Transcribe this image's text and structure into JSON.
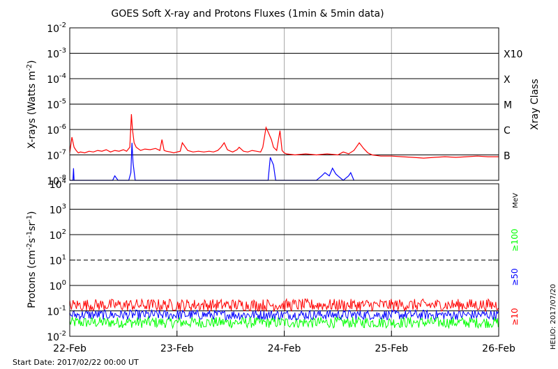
{
  "chart_data": [
    {
      "type": "line",
      "title": "GOES Soft X-ray and Protons Fluxes   (1min & 5min data)",
      "ylabel_parts": {
        "main": "X-rays (Watts m",
        "exp": "-2",
        "close": ")"
      },
      "yscale": "log",
      "ylim": [
        1e-08,
        0.01
      ],
      "yticks": [
        {
          "value": 1e-08,
          "base": "10",
          "exp": "-8"
        },
        {
          "value": 1e-07,
          "base": "10",
          "exp": "-7"
        },
        {
          "value": 1e-06,
          "base": "10",
          "exp": "-6"
        },
        {
          "value": 1e-05,
          "base": "10",
          "exp": "-5"
        },
        {
          "value": 0.0001,
          "base": "10",
          "exp": "-4"
        },
        {
          "value": 0.001,
          "base": "10",
          "exp": "-3"
        },
        {
          "value": 0.01,
          "base": "10",
          "exp": "-2"
        }
      ],
      "right_axis_label": "Xray Class",
      "right_ticks": [
        {
          "value": 1e-07,
          "label": "B"
        },
        {
          "value": 1e-06,
          "label": "C"
        },
        {
          "value": 1e-05,
          "label": "M"
        },
        {
          "value": 0.0001,
          "label": "X"
        },
        {
          "value": 0.001,
          "label": "X10"
        }
      ],
      "xlim": [
        "2017-02-22",
        "2017-02-26"
      ],
      "grid": true,
      "series": [
        {
          "color": "#ff0000",
          "x": [
            0.0,
            0.02,
            0.04,
            0.06,
            0.08,
            0.1,
            0.14,
            0.18,
            0.22,
            0.26,
            0.3,
            0.34,
            0.38,
            0.42,
            0.46,
            0.5,
            0.53,
            0.56,
            0.575,
            0.585,
            0.6,
            0.62,
            0.66,
            0.7,
            0.75,
            0.8,
            0.84,
            0.86,
            0.88,
            0.9,
            0.94,
            0.97,
            1.0,
            1.03,
            1.05,
            1.1,
            1.15,
            1.2,
            1.25,
            1.3,
            1.34,
            1.38,
            1.41,
            1.44,
            1.47,
            1.5,
            1.52,
            1.56,
            1.58,
            1.62,
            1.66,
            1.7,
            1.74,
            1.78,
            1.8,
            1.83,
            1.85,
            1.88,
            1.9,
            1.93,
            1.96,
            1.98,
            2.0,
            2.02,
            2.1,
            2.2,
            2.3,
            2.4,
            2.5,
            2.55,
            2.6,
            2.65,
            2.7,
            2.74,
            2.78,
            2.82,
            2.86,
            2.9,
            3.0,
            3.1,
            3.2,
            3.3,
            3.4,
            3.5,
            3.6,
            3.7,
            3.8,
            3.9,
            4.0
          ],
          "y": [
            1.2e-07,
            5e-07,
            2e-07,
            1.5e-07,
            1.2e-07,
            1.3e-07,
            1.2e-07,
            1.4e-07,
            1.3e-07,
            1.5e-07,
            1.4e-07,
            1.6e-07,
            1.3e-07,
            1.5e-07,
            1.4e-07,
            1.6e-07,
            1.4e-07,
            2e-07,
            4e-06,
            1e-06,
            3e-07,
            2e-07,
            1.5e-07,
            1.7e-07,
            1.6e-07,
            1.8e-07,
            1.5e-07,
            4e-07,
            1.5e-07,
            1.4e-07,
            1.3e-07,
            1.2e-07,
            1.3e-07,
            1.4e-07,
            3e-07,
            1.5e-07,
            1.3e-07,
            1.4e-07,
            1.3e-07,
            1.4e-07,
            1.3e-07,
            1.5e-07,
            2e-07,
            3e-07,
            1.6e-07,
            1.4e-07,
            1.3e-07,
            1.6e-07,
            2e-07,
            1.4e-07,
            1.3e-07,
            1.5e-07,
            1.4e-07,
            1.3e-07,
            2e-07,
            1.2e-06,
            8e-07,
            4e-07,
            2e-07,
            1.5e-07,
            9e-07,
            1.5e-07,
            1.2e-07,
            1.1e-07,
            1e-07,
            1.1e-07,
            1e-07,
            1.1e-07,
            1e-07,
            1.3e-07,
            1.1e-07,
            1.5e-07,
            3e-07,
            1.8e-07,
            1.2e-07,
            1e-07,
            9.5e-08,
            9e-08,
            9e-08,
            8.5e-08,
            8e-08,
            7.5e-08,
            8e-08,
            8.5e-08,
            8e-08,
            8.5e-08,
            9e-08,
            8.5e-08,
            8.5e-08
          ]
        },
        {
          "color": "#0000ff",
          "x": [
            0.0,
            0.03,
            0.035,
            0.04,
            0.1,
            0.4,
            0.42,
            0.45,
            0.55,
            0.57,
            0.58,
            0.59,
            0.61,
            0.7,
            1.0,
            1.5,
            1.8,
            1.85,
            1.87,
            1.9,
            1.92,
            2.1,
            2.3,
            2.35,
            2.38,
            2.42,
            2.45,
            2.48,
            2.5,
            2.55,
            2.6,
            2.62,
            2.65
          ],
          "y": [
            1e-08,
            1e-08,
            3e-08,
            1e-08,
            1e-08,
            1e-08,
            1.5e-08,
            1e-08,
            1e-08,
            2e-08,
            3e-07,
            5e-08,
            1e-08,
            1e-08,
            1e-08,
            1e-08,
            1e-08,
            1e-08,
            8e-08,
            4e-08,
            1e-08,
            1e-08,
            1e-08,
            1.5e-08,
            2e-08,
            1.5e-08,
            3e-08,
            1.8e-08,
            1.5e-08,
            1e-08,
            1.5e-08,
            2e-08,
            1e-08
          ]
        }
      ]
    },
    {
      "type": "line",
      "ylabel_parts": {
        "main": "Protons (cm",
        "e1": "-2",
        "m1": "s",
        "e2": "-1",
        "m2": "sr",
        "e3": "-1",
        "close": ")"
      },
      "yscale": "log",
      "ylim": [
        0.01,
        10000
      ],
      "yticks": [
        {
          "value": 0.01,
          "base": "10",
          "exp": "-2"
        },
        {
          "value": 0.1,
          "base": "10",
          "exp": "-1"
        },
        {
          "value": 1,
          "base": "10",
          "exp": "0"
        },
        {
          "value": 10,
          "base": "10",
          "exp": "1"
        },
        {
          "value": 100,
          "base": "10",
          "exp": "2"
        },
        {
          "value": 1000,
          "base": "10",
          "exp": "3"
        },
        {
          "value": 10000,
          "base": "10",
          "exp": "4"
        }
      ],
      "threshold_line": 10,
      "xlim": [
        "2017-02-22",
        "2017-02-26"
      ],
      "xticks": [
        "22-Feb",
        "23-Feb",
        "24-Feb",
        "25-Feb",
        "26-Feb"
      ],
      "legend": [
        {
          "label": "≥10",
          "color": "#ff0000"
        },
        {
          "label": "≥50",
          "color": "#0000ff"
        },
        {
          "label": "≥100",
          "color": "#00ff00"
        },
        {
          "label": "MeV",
          "color": "#000000"
        }
      ],
      "series": [
        {
          "color": "#ff0000",
          "approx_level": 0.17
        },
        {
          "color": "#0000ff",
          "approx_level": 0.07
        },
        {
          "color": "#00ff00",
          "approx_level": 0.035
        }
      ]
    }
  ],
  "footer": {
    "start_date": "Start Date: 2017/02/22 00:00 UT",
    "credit": "HELIO: 2017/07/20"
  }
}
